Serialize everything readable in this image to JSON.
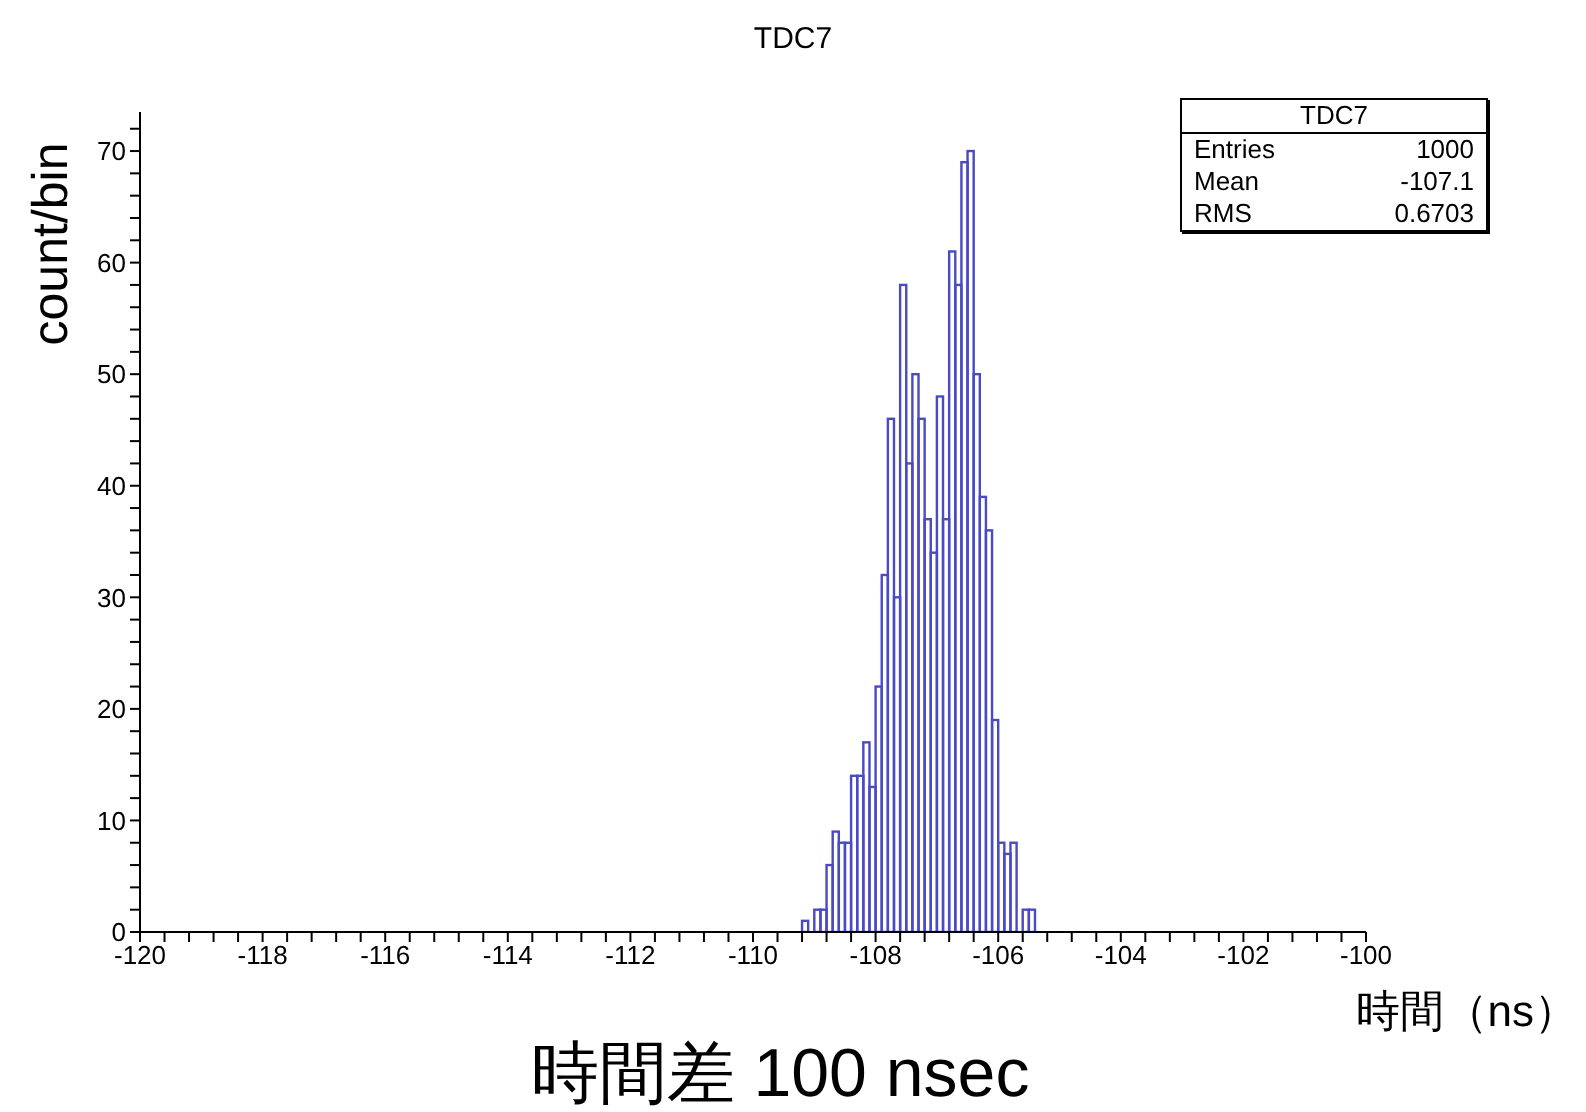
{
  "chart_data": {
    "type": "histogram",
    "title": "TDC7",
    "xlabel": "時間（ns）",
    "ylabel": "count/bin",
    "annotations": [
      "時間差 100 nsec",
      "TDC7",
      "Entries 1000",
      "Mean -107.1",
      "RMS 0.6703"
    ],
    "bins": [
      -109.2,
      -109.1,
      -109.0,
      -108.9,
      -108.8,
      -108.7,
      -108.6,
      -108.5,
      -108.4,
      -108.3,
      -108.2,
      -108.1,
      -108.0,
      -107.9,
      -107.8,
      -107.7,
      -107.6,
      -107.5,
      -107.4,
      -107.3,
      -107.2,
      -107.1,
      -107.0,
      -106.9,
      -106.8,
      -106.7,
      -106.6,
      -106.5,
      -106.4,
      -106.3,
      -106.2,
      -106.1,
      -106.0,
      -105.9,
      -105.8,
      -105.7,
      -105.6,
      -105.5,
      -105.4
    ],
    "values": [
      1,
      0,
      2,
      2,
      6,
      9,
      8,
      8,
      14,
      14,
      17,
      13,
      22,
      32,
      46,
      30,
      58,
      42,
      50,
      46,
      37,
      34,
      48,
      37,
      61,
      58,
      69,
      70,
      50,
      39,
      36,
      19,
      8,
      7,
      8,
      0,
      2,
      2
    ],
    "color": "#4a4ac4",
    "xlim": [
      -120,
      -100
    ],
    "xticks": [
      -120,
      {
        "value": -119.6,
        "label": null
      },
      {
        "value": -119.2,
        "label": null
      },
      {
        "value": -118.8,
        "label": null
      },
      {
        "value": -118.4,
        "label": null
      },
      -118,
      {
        "value": -117.6,
        "label": null
      },
      {
        "value": -117.2,
        "label": null
      },
      {
        "value": -116.8,
        "label": null
      },
      {
        "value": -116.4,
        "label": null
      },
      -116,
      {
        "value": -115.6,
        "label": null
      },
      {
        "value": -115.2,
        "label": null
      },
      {
        "value": -114.8,
        "label": null
      },
      {
        "value": -114.4,
        "label": null
      },
      -114,
      {
        "value": -113.6,
        "label": null
      },
      {
        "value": -113.2,
        "label": null
      },
      {
        "value": -112.8,
        "label": null
      },
      {
        "value": -112.4,
        "label": null
      },
      -112,
      {
        "value": -111.6,
        "label": null
      },
      {
        "value": -111.2,
        "label": null
      },
      {
        "value": -110.8,
        "label": null
      },
      {
        "value": -110.4,
        "label": null
      },
      -110,
      {
        "value": -109.6,
        "label": null
      },
      {
        "value": -109.2,
        "label": null
      },
      {
        "value": -108.8,
        "label": null
      },
      {
        "value": -108.4,
        "label": null
      },
      -108,
      {
        "value": -107.6,
        "label": null
      },
      {
        "value": -107.2,
        "label": null
      },
      {
        "value": -106.8,
        "label": null
      },
      {
        "value": -106.4,
        "label": null
      },
      -106,
      {
        "value": -105.6,
        "label": null
      },
      {
        "value": -105.2,
        "label": null
      },
      {
        "value": -104.8,
        "label": null
      },
      {
        "value": -104.4,
        "label": null
      },
      -104,
      {
        "value": -103.6,
        "label": null
      },
      {
        "value": -103.2,
        "label": null
      },
      {
        "value": -102.8,
        "label": null
      },
      {
        "value": -102.4,
        "label": null
      },
      -102,
      {
        "value": -101.6,
        "label": null
      },
      {
        "value": -101.2,
        "label": null
      },
      {
        "value": -100.8,
        "label": null
      },
      {
        "value": -100.4,
        "label": null
      },
      -100
    ],
    "ylim": [
      0,
      73.5
    ],
    "yticks": [
      0,
      {
        "value": 2,
        "label": null
      },
      {
        "value": 4,
        "label": null
      },
      {
        "value": 6,
        "label": null
      },
      {
        "value": 8,
        "label": null
      },
      10,
      {
        "value": 12,
        "label": null
      },
      {
        "value": 14,
        "label": null
      },
      {
        "value": 16,
        "label": null
      },
      {
        "value": 18,
        "label": null
      },
      20,
      {
        "value": 22,
        "label": null
      },
      {
        "value": 24,
        "label": null
      },
      {
        "value": 26,
        "label": null
      },
      {
        "value": 28,
        "label": null
      },
      30,
      {
        "value": 32,
        "label": null
      },
      {
        "value": 34,
        "label": null
      },
      {
        "value": 36,
        "label": null
      },
      {
        "value": 38,
        "label": null
      },
      40,
      {
        "value": 42,
        "label": null
      },
      {
        "value": 44,
        "label": null
      },
      {
        "value": 46,
        "label": null
      },
      {
        "value": 48,
        "label": null
      },
      50,
      {
        "value": 52,
        "label": null
      },
      {
        "value": 54,
        "label": null
      },
      {
        "value": 56,
        "label": null
      },
      {
        "value": 58,
        "label": null
      },
      60,
      {
        "value": 62,
        "label": null
      },
      {
        "value": 64,
        "label": null
      },
      {
        "value": 66,
        "label": null
      },
      {
        "value": 68,
        "label": null
      },
      70,
      {
        "value": 72,
        "label": null
      }
    ]
  }
}
